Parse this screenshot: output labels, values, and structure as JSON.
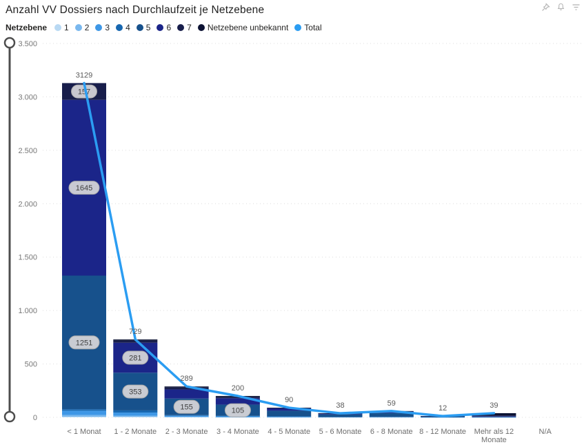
{
  "header": {
    "title": "Anzahl VV Dossiers nach Durchlaufzeit je Netzebene",
    "icons": [
      "pin-icon",
      "bell-icon",
      "filter-icon"
    ]
  },
  "legend": {
    "title": "Netzebene",
    "items": [
      {
        "label": "1",
        "color": "#b9d9f3"
      },
      {
        "label": "2",
        "color": "#7ab8ee"
      },
      {
        "label": "3",
        "color": "#3e97e6"
      },
      {
        "label": "4",
        "color": "#1767b0"
      },
      {
        "label": "5",
        "color": "#17518c"
      },
      {
        "label": "6",
        "color": "#1b2589"
      },
      {
        "label": "7",
        "color": "#181e4b"
      },
      {
        "label": "Netzebene unbekannt",
        "color": "#0c1233"
      },
      {
        "label": "Total",
        "color": "#2b9df2"
      }
    ]
  },
  "chart_data": {
    "type": "bar",
    "subtype": "stacked-bar-with-total-line",
    "title": "Anzahl VV Dossiers nach Durchlaufzeit je Netzebene",
    "categories": [
      "< 1 Monat",
      "1 - 2 Monate",
      "2 - 3 Monate",
      "3 - 4 Monate",
      "4 - 5 Monate",
      "5 - 6 Monate",
      "6 - 8 Monate",
      "8 - 12 Monate",
      "Mehr als 12 Monate",
      "N/A"
    ],
    "series": [
      {
        "name": "1",
        "color": "#b9d9f3",
        "values": [
          6,
          5,
          2,
          1,
          0,
          0,
          0,
          0,
          0,
          0
        ]
      },
      {
        "name": "2",
        "color": "#7ab8ee",
        "values": [
          16,
          10,
          3,
          2,
          1,
          0,
          0,
          0,
          0,
          0
        ]
      },
      {
        "name": "3",
        "color": "#3e97e6",
        "values": [
          40,
          30,
          10,
          7,
          4,
          2,
          2,
          1,
          1,
          0
        ]
      },
      {
        "name": "4",
        "color": "#1767b0",
        "values": [
          14,
          20,
          6,
          4,
          5,
          2,
          3,
          1,
          1,
          0
        ]
      },
      {
        "name": "5",
        "color": "#17518c",
        "values": [
          1251,
          353,
          155,
          105,
          52,
          24,
          36,
          7,
          3,
          0
        ]
      },
      {
        "name": "6",
        "color": "#1b2589",
        "values": [
          1645,
          281,
          85,
          60,
          22,
          8,
          14,
          2,
          6,
          0
        ]
      },
      {
        "name": "7",
        "color": "#181e4b",
        "values": [
          157,
          20,
          18,
          13,
          4,
          1,
          2,
          0,
          6,
          0
        ]
      },
      {
        "name": "Netzebene unbekannt",
        "color": "#0c1233",
        "values": [
          0,
          10,
          10,
          8,
          2,
          1,
          2,
          1,
          22,
          0
        ]
      }
    ],
    "labeled_segments": [
      3129,
      729,
      289,
      200,
      90,
      38,
      59,
      12,
      39,
      157,
      1645,
      1251,
      281,
      353,
      155,
      105
    ],
    "line_series": {
      "name": "Total",
      "color": "#2b9df2",
      "values": [
        3129,
        729,
        289,
        200,
        90,
        38,
        59,
        12,
        39,
        null
      ]
    },
    "totals": [
      3129,
      729,
      289,
      200,
      90,
      38,
      59,
      12,
      39,
      null
    ],
    "ylim": [
      0,
      3500
    ],
    "yticks": [
      0,
      500,
      1000,
      1500,
      2000,
      2500,
      3000,
      3500
    ],
    "ytick_labels": [
      "0",
      "500",
      "1.000",
      "1.500",
      "2.000",
      "2.500",
      "3.000",
      "3.500"
    ],
    "xlabel": "",
    "ylabel": "",
    "grid": "dotted-horizontal",
    "legend_position": "top"
  }
}
